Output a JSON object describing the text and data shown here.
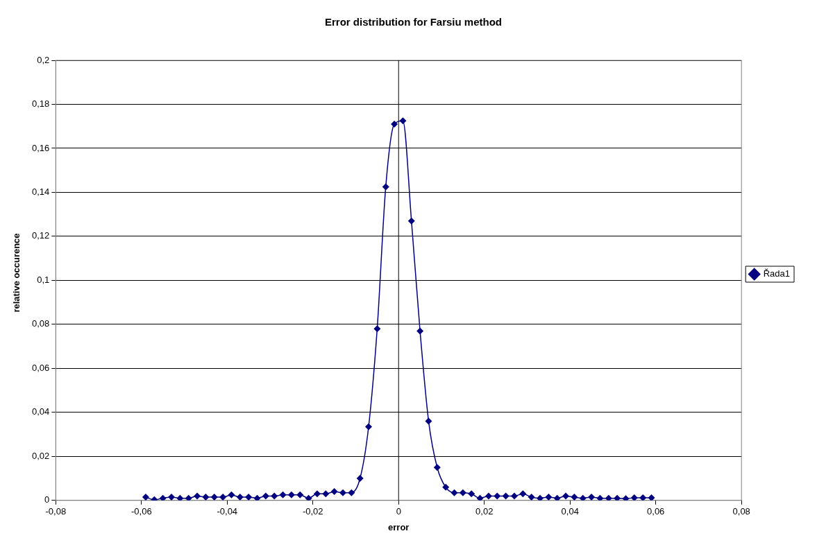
{
  "chart_data": {
    "type": "line",
    "title": "Error distribution for Farsiu method",
    "xlabel": "error",
    "ylabel": "relative occurence",
    "x": [
      -0.059,
      -0.057,
      -0.055,
      -0.053,
      -0.051,
      -0.049,
      -0.047,
      -0.045,
      -0.043,
      -0.041,
      -0.039,
      -0.037,
      -0.035,
      -0.033,
      -0.031,
      -0.029,
      -0.027,
      -0.025,
      -0.023,
      -0.021,
      -0.019,
      -0.017,
      -0.015,
      -0.013,
      -0.011,
      -0.009,
      -0.007,
      -0.005,
      -0.003,
      -0.001,
      0.001,
      0.003,
      0.005,
      0.007,
      0.009,
      0.011,
      0.013,
      0.015,
      0.017,
      0.019,
      0.021,
      0.023,
      0.025,
      0.027,
      0.029,
      0.031,
      0.033,
      0.035,
      0.037,
      0.039,
      0.041,
      0.043,
      0.045,
      0.047,
      0.049,
      0.051,
      0.053,
      0.055,
      0.057,
      0.059
    ],
    "series": [
      {
        "name": "Řada1",
        "color": "#000080",
        "values": [
          0.0015,
          0.0003,
          0.001,
          0.0015,
          0.001,
          0.001,
          0.002,
          0.0015,
          0.0015,
          0.0015,
          0.0025,
          0.0015,
          0.0015,
          0.001,
          0.002,
          0.002,
          0.0025,
          0.0025,
          0.0025,
          0.001,
          0.003,
          0.003,
          0.004,
          0.0035,
          0.0035,
          0.01,
          0.0335,
          0.078,
          0.1425,
          0.171,
          0.1725,
          0.127,
          0.077,
          0.036,
          0.015,
          0.006,
          0.0035,
          0.0035,
          0.003,
          0.001,
          0.002,
          0.002,
          0.002,
          0.002,
          0.003,
          0.0015,
          0.001,
          0.0015,
          0.001,
          0.002,
          0.0015,
          0.001,
          0.0015,
          0.001,
          0.001,
          0.001,
          0.0008,
          0.0012,
          0.0012,
          0.0012
        ]
      }
    ],
    "xlim": [
      -0.08,
      0.08
    ],
    "xticks": [
      {
        "value": -0.08,
        "label": "-0,08"
      },
      {
        "value": -0.06,
        "label": "-0,06"
      },
      {
        "value": -0.04,
        "label": "-0,04"
      },
      {
        "value": -0.02,
        "label": "-0,02"
      },
      0,
      {
        "value": 0.02,
        "label": "0,02"
      },
      {
        "value": 0.04,
        "label": "0,04"
      },
      {
        "value": 0.06,
        "label": "0,06"
      },
      {
        "value": 0.08,
        "label": "0,08"
      }
    ],
    "ylim": [
      0,
      0.2
    ],
    "yticks": [
      0,
      {
        "value": 0.02,
        "label": "0,02"
      },
      {
        "value": 0.04,
        "label": "0,04"
      },
      {
        "value": 0.06,
        "label": "0,06"
      },
      {
        "value": 0.08,
        "label": "0,08"
      },
      {
        "value": 0.1,
        "label": "0,1"
      },
      {
        "value": 0.12,
        "label": "0,12"
      },
      {
        "value": 0.14,
        "label": "0,14"
      },
      {
        "value": 0.16,
        "label": "0,16"
      },
      {
        "value": 0.18,
        "label": "0,18"
      },
      {
        "value": 0.2,
        "label": "0,2"
      }
    ],
    "ref_lines": [
      {
        "axis": "x",
        "value": 0,
        "color": "#000000"
      }
    ],
    "grid": "y",
    "legend": "right",
    "marker": "diamond",
    "line_style": "solid"
  }
}
